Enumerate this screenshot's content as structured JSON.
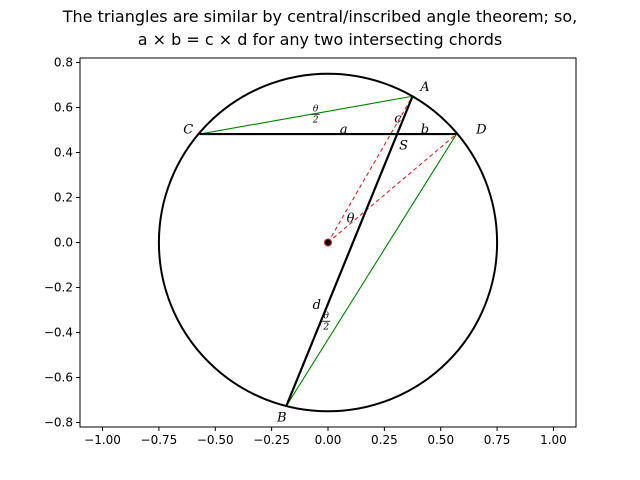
{
  "chart_data": {
    "type": "scatter",
    "title_line1": "The triangles are similar by central/inscribed angle theorem; so,",
    "title_line2": "a × b = c × d for any two intersecting chords",
    "xlabel": "",
    "ylabel": "",
    "xlim": [
      -1.1,
      1.1
    ],
    "ylim": [
      -0.82,
      0.82
    ],
    "xticks": [
      -1.0,
      -0.75,
      -0.5,
      -0.25,
      0.0,
      0.25,
      0.5,
      0.75,
      1.0
    ],
    "xtick_labels": [
      "−1.00",
      "−0.75",
      "−0.50",
      "−0.25",
      "0.00",
      "0.25",
      "0.50",
      "0.75",
      "1.00"
    ],
    "yticks": [
      0.8,
      0.6,
      0.4,
      0.2,
      0.0,
      -0.2,
      -0.4,
      -0.6,
      -0.8
    ],
    "ytick_labels": [
      "0.8",
      "0.6",
      "0.4",
      "0.2",
      "0.0",
      "−0.2",
      "−0.4",
      "−0.6",
      "−0.8"
    ],
    "grid": false,
    "circle": {
      "center": [
        0.0,
        0.0
      ],
      "radius": 0.75,
      "color": "#000000"
    },
    "points": {
      "A": [
        0.375,
        0.65
      ],
      "B": [
        -0.185,
        -0.727
      ],
      "C": [
        -0.57,
        0.482
      ],
      "D": [
        0.57,
        0.482
      ],
      "S": [
        0.3,
        0.482
      ],
      "O": [
        0.0,
        0.0
      ]
    },
    "chords": [
      {
        "from": "C",
        "to": "D",
        "color": "#000000",
        "style": "solid"
      },
      {
        "from": "A",
        "to": "B",
        "color": "#000000",
        "style": "solid"
      }
    ],
    "triangle_sides": [
      {
        "from": "C",
        "to": "A",
        "color": "#008000",
        "style": "solid"
      },
      {
        "from": "B",
        "to": "D",
        "color": "#008000",
        "style": "solid"
      }
    ],
    "radii": [
      {
        "from": "O",
        "to": "A",
        "color": "#d62728",
        "style": "dashed"
      },
      {
        "from": "O",
        "to": "D",
        "color": "#d62728",
        "style": "dashed"
      }
    ],
    "center_point_color": "#d62728",
    "labels": [
      {
        "text": "A",
        "x": 0.43,
        "y": 0.69
      },
      {
        "text": "B",
        "x": -0.205,
        "y": -0.78
      },
      {
        "text": "C",
        "x": -0.62,
        "y": 0.5
      },
      {
        "text": "D",
        "x": 0.68,
        "y": 0.5
      },
      {
        "text": "S",
        "x": 0.335,
        "y": 0.43
      },
      {
        "text": "a",
        "x": 0.07,
        "y": 0.5
      },
      {
        "text": "b",
        "x": 0.43,
        "y": 0.5
      },
      {
        "text": "c",
        "x": 0.31,
        "y": 0.55
      },
      {
        "text": "d",
        "x": -0.05,
        "y": -0.28
      },
      {
        "text": "θ",
        "x": 0.1,
        "y": 0.105
      }
    ],
    "half_angle_labels": [
      {
        "num": "θ",
        "den": "2",
        "x": -0.055,
        "y": 0.57
      },
      {
        "num": "θ",
        "den": "2",
        "x": -0.008,
        "y": -0.35
      }
    ]
  }
}
